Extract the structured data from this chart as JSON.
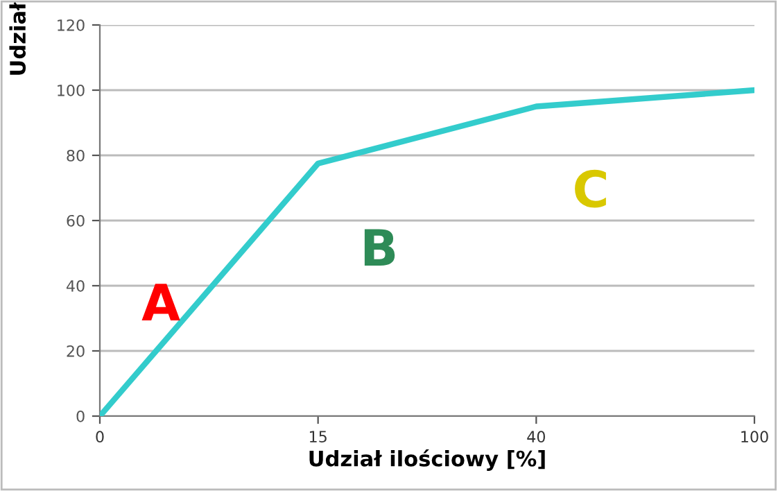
{
  "chart_data": {
    "type": "line",
    "categories": [
      "0",
      "15",
      "40",
      "100"
    ],
    "series": [
      {
        "color": "#33cccc",
        "values": [
          0,
          77.5,
          95,
          100
        ]
      }
    ],
    "xlabel": "Udział ilościowy [%]",
    "ylabel": "Udział",
    "ylim": [
      0,
      120
    ],
    "yticks": [
      0,
      20,
      40,
      60,
      80,
      100,
      120
    ],
    "grid": "y",
    "marker": "none",
    "line_style": "solid",
    "legend": false,
    "annotations": [
      "A",
      "B",
      "C"
    ]
  }
}
